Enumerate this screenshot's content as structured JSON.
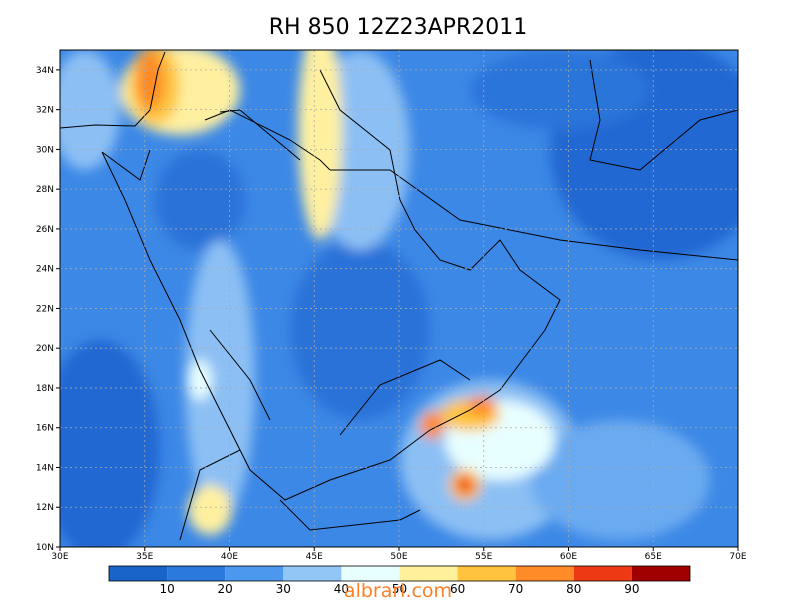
{
  "title": "RH 850  12Z23APR2011",
  "map": {
    "xlim": [
      30,
      70
    ],
    "ylim": [
      10,
      35
    ],
    "xticks": [
      {
        "value": 30,
        "label": "30E"
      },
      {
        "value": 35,
        "label": "35E"
      },
      {
        "value": 40,
        "label": "40E"
      },
      {
        "value": 45,
        "label": "45E"
      },
      {
        "value": 50,
        "label": "50E"
      },
      {
        "value": 55,
        "label": "55E"
      },
      {
        "value": 60,
        "label": "60E"
      },
      {
        "value": 65,
        "label": "65E"
      },
      {
        "value": 70,
        "label": "70E"
      }
    ],
    "yticks": [
      {
        "value": 10,
        "label": "10N"
      },
      {
        "value": 12,
        "label": "12N"
      },
      {
        "value": 14,
        "label": "14N"
      },
      {
        "value": 16,
        "label": "16N"
      },
      {
        "value": 18,
        "label": "18N"
      },
      {
        "value": 20,
        "label": "20N"
      },
      {
        "value": 22,
        "label": "22N"
      },
      {
        "value": 24,
        "label": "24N"
      },
      {
        "value": 26,
        "label": "26N"
      },
      {
        "value": 28,
        "label": "28N"
      },
      {
        "value": 30,
        "label": "30N"
      },
      {
        "value": 32,
        "label": "32N"
      },
      {
        "value": 34,
        "label": "34N"
      }
    ],
    "grid": true
  },
  "colorbar": {
    "levels": [
      10,
      20,
      30,
      40,
      50,
      60,
      70,
      80,
      90
    ],
    "colors": [
      "#1964c8",
      "#2a7ade",
      "#4c98ee",
      "#92c6f6",
      "#e8ffff",
      "#fff09c",
      "#ffc43c",
      "#ff8a28",
      "#ee3a14",
      "#a00000"
    ]
  },
  "watermark": "albrari.com"
}
